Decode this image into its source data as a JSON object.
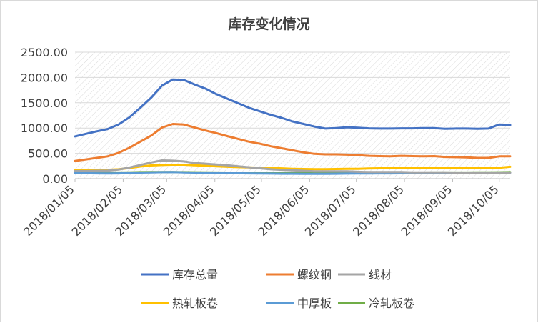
{
  "chart_data": {
    "type": "line",
    "title": "库存变化情况",
    "xlabel": "",
    "ylabel": "",
    "ylim": [
      0,
      2500
    ],
    "yticks": [
      "0.00",
      "500.00",
      "1000.00",
      "1500.00",
      "2000.00",
      "2500.00"
    ],
    "xticks": [
      "2018/01/05",
      "2018/02/05",
      "2018/03/05",
      "2018/04/05",
      "2018/05/05",
      "2018/06/05",
      "2018/07/05",
      "2018/08/05",
      "2018/09/05",
      "2018/10/05"
    ],
    "x": [
      "2018/01/05",
      "2018/01/12",
      "2018/01/19",
      "2018/01/26",
      "2018/02/02",
      "2018/02/09",
      "2018/02/16",
      "2018/02/23",
      "2018/03/02",
      "2018/03/09",
      "2018/03/16",
      "2018/03/23",
      "2018/03/30",
      "2018/04/06",
      "2018/04/13",
      "2018/04/20",
      "2018/04/27",
      "2018/05/04",
      "2018/05/11",
      "2018/05/18",
      "2018/05/25",
      "2018/06/01",
      "2018/06/08",
      "2018/06/15",
      "2018/06/22",
      "2018/06/29",
      "2018/07/06",
      "2018/07/13",
      "2018/07/20",
      "2018/07/27",
      "2018/08/03",
      "2018/08/10",
      "2018/08/17",
      "2018/08/24",
      "2018/08/31",
      "2018/09/07",
      "2018/09/14",
      "2018/09/21",
      "2018/09/28",
      "2018/10/05",
      "2018/10/12"
    ],
    "grid": true,
    "legend_position": "bottom",
    "series": [
      {
        "name": "库存总量",
        "color": "#4472c4",
        "values": [
          835,
          885,
          935,
          980,
          1070,
          1210,
          1400,
          1600,
          1840,
          1960,
          1950,
          1860,
          1780,
          1670,
          1580,
          1490,
          1400,
          1330,
          1260,
          1200,
          1130,
          1080,
          1030,
          990,
          1000,
          1015,
          1005,
          995,
          990,
          990,
          995,
          995,
          1000,
          1000,
          985,
          990,
          990,
          985,
          990,
          1070,
          1060
        ]
      },
      {
        "name": "螺纹钢",
        "color": "#ed7d31",
        "values": [
          350,
          380,
          410,
          440,
          510,
          610,
          730,
          850,
          1010,
          1080,
          1070,
          1010,
          950,
          900,
          840,
          785,
          730,
          690,
          640,
          600,
          560,
          520,
          490,
          480,
          480,
          475,
          465,
          450,
          445,
          440,
          450,
          445,
          440,
          445,
          430,
          425,
          420,
          410,
          410,
          440,
          440
        ]
      },
      {
        "name": "线材",
        "color": "#a5a5a5",
        "values": [
          150,
          150,
          155,
          160,
          180,
          220,
          270,
          320,
          360,
          355,
          340,
          310,
          295,
          280,
          265,
          245,
          225,
          205,
          185,
          175,
          165,
          155,
          145,
          145,
          145,
          145,
          135,
          130,
          130,
          130,
          130,
          125,
          125,
          125,
          125,
          120,
          120,
          120,
          120,
          120,
          120
        ]
      },
      {
        "name": "热轧板卷",
        "color": "#ffc000",
        "values": [
          175,
          170,
          170,
          175,
          185,
          210,
          240,
          262,
          270,
          275,
          275,
          265,
          255,
          245,
          235,
          228,
          222,
          218,
          210,
          203,
          195,
          190,
          188,
          188,
          190,
          195,
          195,
          200,
          205,
          210,
          212,
          215,
          210,
          210,
          210,
          205,
          205,
          205,
          210,
          215,
          235
        ]
      },
      {
        "name": "中厚板",
        "color": "#5b9bd5",
        "values": [
          110,
          108,
          105,
          103,
          105,
          110,
          120,
          125,
          128,
          130,
          125,
          120,
          115,
          112,
          110,
          108,
          105,
          103,
          100,
          98,
          97,
          95,
          95,
          96,
          98,
          100,
          102,
          103,
          104,
          105,
          106,
          107,
          108,
          110,
          112,
          112,
          112,
          113,
          115,
          117,
          120
        ]
      },
      {
        "name": "冷轧板卷",
        "color": "#70ad47",
        "values": [
          115,
          115,
          118,
          120,
          122,
          125,
          128,
          130,
          132,
          130,
          128,
          126,
          124,
          122,
          120,
          120,
          118,
          117,
          116,
          115,
          115,
          114,
          112,
          112,
          114,
          115,
          116,
          117,
          118,
          118,
          120,
          120,
          120,
          121,
          122,
          122,
          122,
          123,
          124,
          126,
          128
        ]
      }
    ]
  }
}
